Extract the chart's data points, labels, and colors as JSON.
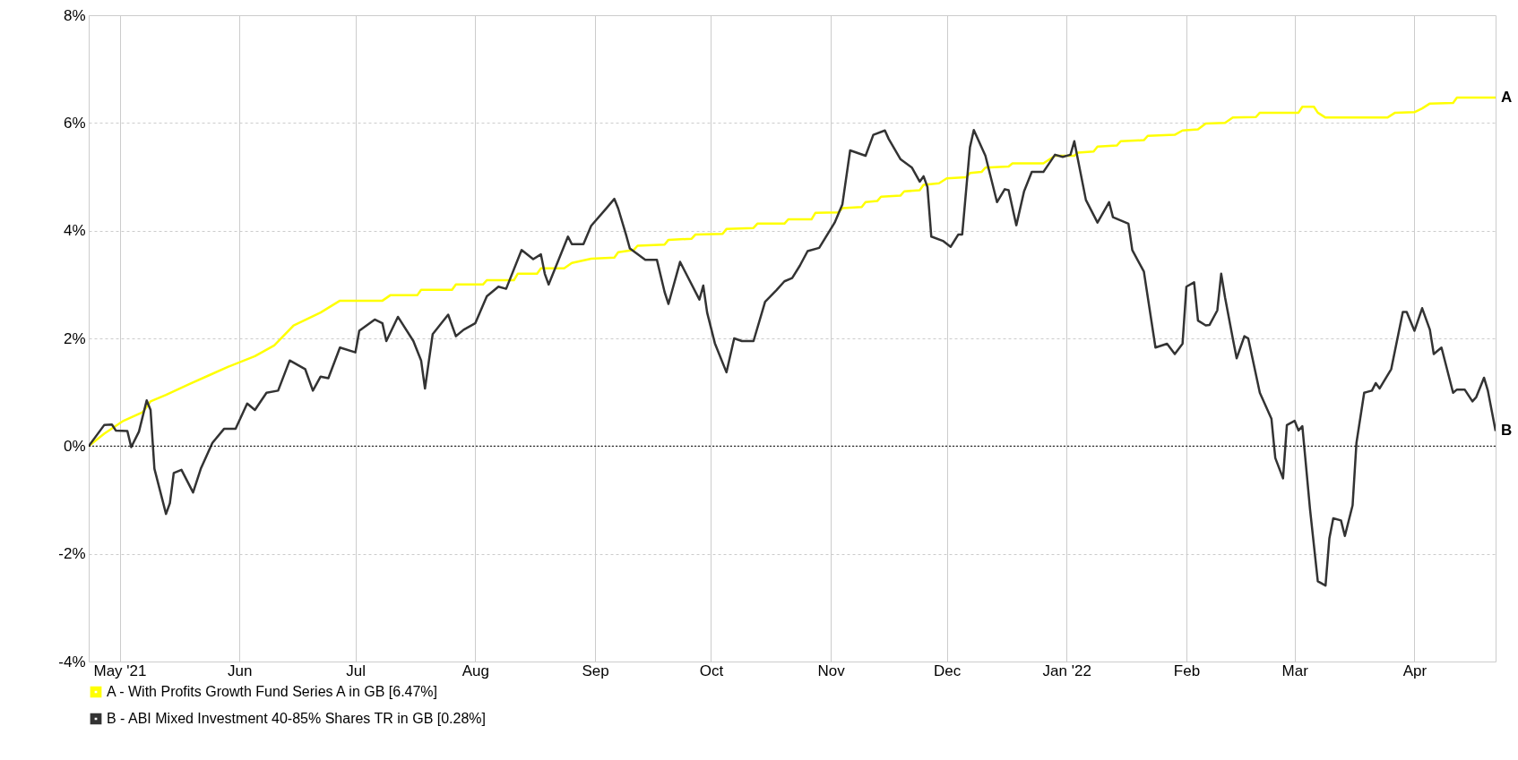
{
  "chart_data": {
    "type": "line",
    "xlim": [
      "2021-04-23",
      "2022-04-22"
    ],
    "xticks": [
      {
        "value": "2021-05-01",
        "label": "May '21"
      },
      {
        "value": "2021-06-01",
        "label": "Jun"
      },
      {
        "value": "2021-07-01",
        "label": "Jul"
      },
      {
        "value": "2021-08-01",
        "label": "Aug"
      },
      {
        "value": "2021-09-01",
        "label": "Sep"
      },
      {
        "value": "2021-10-01",
        "label": "Oct"
      },
      {
        "value": "2021-11-01",
        "label": "Nov"
      },
      {
        "value": "2021-12-01",
        "label": "Dec"
      },
      {
        "value": "2022-01-01",
        "label": "Jan '22"
      },
      {
        "value": "2022-02-01",
        "label": "Feb"
      },
      {
        "value": "2022-03-01",
        "label": "Mar"
      },
      {
        "value": "2022-04-01",
        "label": "Apr"
      }
    ],
    "ylim": [
      -4,
      8
    ],
    "yticks": [
      {
        "value": -4,
        "label": "-4%"
      },
      {
        "value": -2,
        "label": "-2%"
      },
      {
        "value": 0,
        "label": "0%"
      },
      {
        "value": 2,
        "label": "2%"
      },
      {
        "value": 4,
        "label": "4%"
      },
      {
        "value": 6,
        "label": "6%"
      },
      {
        "value": 8,
        "label": "8%"
      }
    ],
    "grid": true,
    "legend": "bottom",
    "line_style": "solid",
    "ref_lines": [
      {
        "axis": "y",
        "value": 0,
        "color": "#000000",
        "line_style": "dotted"
      }
    ],
    "annotations": [
      {
        "text": "A",
        "x": "2022-04-22",
        "y": 6.47
      },
      {
        "text": "B",
        "x": "2022-04-22",
        "y": 0.28
      }
    ],
    "series": [
      {
        "name": "A - With Profits Growth Fund Series A in GB [6.47%]",
        "color": "#ffff00",
        "x": [
          "2021-04-23",
          "2021-04-27",
          "2021-05-02",
          "2021-05-07",
          "2021-05-09",
          "2021-05-13",
          "2021-05-19",
          "2021-05-24",
          "2021-05-29",
          "2021-06-05",
          "2021-06-10",
          "2021-06-15",
          "2021-06-22",
          "2021-06-27",
          "2021-07-08",
          "2021-07-10",
          "2021-07-17",
          "2021-07-18",
          "2021-07-26",
          "2021-07-27",
          "2021-08-03",
          "2021-08-04",
          "2021-08-11",
          "2021-08-12",
          "2021-08-17",
          "2021-08-18",
          "2021-08-24",
          "2021-08-26",
          "2021-08-31",
          "2021-09-06",
          "2021-09-07",
          "2021-09-11",
          "2021-09-12",
          "2021-09-19",
          "2021-09-20",
          "2021-09-26",
          "2021-09-27",
          "2021-10-04",
          "2021-10-05",
          "2021-10-12",
          "2021-10-13",
          "2021-10-20",
          "2021-10-21",
          "2021-10-27",
          "2021-10-28",
          "2021-11-03",
          "2021-11-04",
          "2021-11-09",
          "2021-11-10",
          "2021-11-13",
          "2021-11-14",
          "2021-11-19",
          "2021-11-20",
          "2021-11-24",
          "2021-11-25",
          "2021-11-29",
          "2021-12-01",
          "2021-12-06",
          "2021-12-07",
          "2021-12-10",
          "2021-12-11",
          "2021-12-17",
          "2021-12-18",
          "2021-12-26",
          "2021-12-29",
          "2022-01-03",
          "2022-01-04",
          "2022-01-08",
          "2022-01-09",
          "2022-01-14",
          "2022-01-15",
          "2022-01-21",
          "2022-01-22",
          "2022-01-29",
          "2022-01-31",
          "2022-02-04",
          "2022-02-06",
          "2022-02-11",
          "2022-02-13",
          "2022-02-19",
          "2022-02-20",
          "2022-03-02",
          "2022-03-03",
          "2022-03-06",
          "2022-03-07",
          "2022-03-09",
          "2022-03-25",
          "2022-03-27",
          "2022-04-01",
          "2022-04-03",
          "2022-04-05",
          "2022-04-11",
          "2022-04-12",
          "2022-04-22"
        ],
        "values": [
          0,
          0.23,
          0.47,
          0.63,
          0.83,
          0.95,
          1.15,
          1.31,
          1.47,
          1.67,
          1.87,
          2.24,
          2.48,
          2.7,
          2.7,
          2.8,
          2.8,
          2.9,
          2.9,
          3.0,
          3.0,
          3.08,
          3.08,
          3.2,
          3.2,
          3.3,
          3.3,
          3.4,
          3.48,
          3.5,
          3.6,
          3.64,
          3.72,
          3.74,
          3.83,
          3.85,
          3.93,
          3.94,
          4.03,
          4.05,
          4.13,
          4.13,
          4.21,
          4.21,
          4.33,
          4.34,
          4.42,
          4.44,
          4.53,
          4.55,
          4.63,
          4.65,
          4.73,
          4.75,
          4.85,
          4.88,
          4.97,
          4.99,
          5.07,
          5.09,
          5.17,
          5.19,
          5.25,
          5.25,
          5.39,
          5.39,
          5.45,
          5.47,
          5.56,
          5.58,
          5.66,
          5.68,
          5.76,
          5.78,
          5.86,
          5.88,
          5.99,
          6.0,
          6.1,
          6.11,
          6.19,
          6.19,
          6.3,
          6.3,
          6.19,
          6.1,
          6.1,
          6.19,
          6.2,
          6.27,
          6.36,
          6.37,
          6.47,
          6.47
        ]
      },
      {
        "name": "B - ABI Mixed Investment 40-85% Shares TR in GB [0.28%]",
        "color": "#333333",
        "x": [
          "2021-04-23",
          "2021-04-27",
          "2021-04-29",
          "2021-04-30",
          "2021-05-03",
          "2021-05-04",
          "2021-05-06",
          "2021-05-08",
          "2021-05-09",
          "2021-05-10",
          "2021-05-13",
          "2021-05-14",
          "2021-05-15",
          "2021-05-17",
          "2021-05-20",
          "2021-05-22",
          "2021-05-25",
          "2021-05-28",
          "2021-05-31",
          "2021-06-03",
          "2021-06-05",
          "2021-06-08",
          "2021-06-11",
          "2021-06-14",
          "2021-06-18",
          "2021-06-20",
          "2021-06-22",
          "2021-06-24",
          "2021-06-27",
          "2021-07-01",
          "2021-07-02",
          "2021-07-06",
          "2021-07-08",
          "2021-07-09",
          "2021-07-12",
          "2021-07-16",
          "2021-07-18",
          "2021-07-19",
          "2021-07-21",
          "2021-07-25",
          "2021-07-27",
          "2021-07-29",
          "2021-08-01",
          "2021-08-04",
          "2021-08-07",
          "2021-08-09",
          "2021-08-13",
          "2021-08-16",
          "2021-08-18",
          "2021-08-19",
          "2021-08-20",
          "2021-08-25",
          "2021-08-26",
          "2021-08-29",
          "2021-08-31",
          "2021-09-04",
          "2021-09-06",
          "2021-09-07",
          "2021-09-09",
          "2021-09-10",
          "2021-09-14",
          "2021-09-17",
          "2021-09-19",
          "2021-09-20",
          "2021-09-23",
          "2021-09-24",
          "2021-09-28",
          "2021-09-29",
          "2021-09-30",
          "2021-10-02",
          "2021-10-05",
          "2021-10-07",
          "2021-10-09",
          "2021-10-12",
          "2021-10-15",
          "2021-10-18",
          "2021-10-20",
          "2021-10-22",
          "2021-10-24",
          "2021-10-26",
          "2021-10-29",
          "2021-11-02",
          "2021-11-04",
          "2021-11-06",
          "2021-11-08",
          "2021-11-10",
          "2021-11-12",
          "2021-11-15",
          "2021-11-16",
          "2021-11-19",
          "2021-11-22",
          "2021-11-24",
          "2021-11-25",
          "2021-11-26",
          "2021-11-27",
          "2021-11-30",
          "2021-12-02",
          "2021-12-04",
          "2021-12-05",
          "2021-12-07",
          "2021-12-08",
          "2021-12-11",
          "2021-12-14",
          "2021-12-16",
          "2021-12-17",
          "2021-12-19",
          "2021-12-21",
          "2021-12-23",
          "2021-12-26",
          "2021-12-29",
          "2021-12-31",
          "2022-01-02",
          "2022-01-03",
          "2022-01-06",
          "2022-01-09",
          "2022-01-12",
          "2022-01-13",
          "2022-01-17",
          "2022-01-18",
          "2022-01-21",
          "2022-01-24",
          "2022-01-27",
          "2022-01-29",
          "2022-01-31",
          "2022-02-01",
          "2022-02-03",
          "2022-02-04",
          "2022-02-06",
          "2022-02-07",
          "2022-02-09",
          "2022-02-10",
          "2022-02-11",
          "2022-02-13",
          "2022-02-14",
          "2022-02-16",
          "2022-02-17",
          "2022-02-20",
          "2022-02-23",
          "2022-02-24",
          "2022-02-26",
          "2022-02-27",
          "2022-03-01",
          "2022-03-02",
          "2022-03-03",
          "2022-03-05",
          "2022-03-07",
          "2022-03-09",
          "2022-03-10",
          "2022-03-11",
          "2022-03-13",
          "2022-03-14",
          "2022-03-16",
          "2022-03-17",
          "2022-03-19",
          "2022-03-21",
          "2022-03-22",
          "2022-03-23",
          "2022-03-26",
          "2022-03-29",
          "2022-03-30",
          "2022-04-01",
          "2022-04-03",
          "2022-04-05",
          "2022-04-06",
          "2022-04-08",
          "2022-04-11",
          "2022-04-12",
          "2022-04-14",
          "2022-04-16",
          "2022-04-17",
          "2022-04-19",
          "2022-04-20",
          "2022-04-22"
        ],
        "values": [
          0,
          0.39,
          0.4,
          0.29,
          0.28,
          -0.02,
          0.27,
          0.85,
          0.67,
          -0.42,
          -1.26,
          -1.06,
          -0.5,
          -0.44,
          -0.86,
          -0.42,
          0.06,
          0.32,
          0.32,
          0.79,
          0.67,
          0.99,
          1.03,
          1.59,
          1.43,
          1.03,
          1.29,
          1.26,
          1.83,
          1.74,
          2.14,
          2.35,
          2.28,
          1.95,
          2.4,
          1.95,
          1.59,
          1.07,
          2.08,
          2.44,
          2.04,
          2.16,
          2.28,
          2.78,
          2.96,
          2.92,
          3.64,
          3.47,
          3.56,
          3.2,
          3.0,
          3.89,
          3.75,
          3.75,
          4.09,
          4.42,
          4.59,
          4.41,
          3.93,
          3.67,
          3.46,
          3.46,
          2.86,
          2.64,
          3.42,
          3.28,
          2.72,
          2.98,
          2.48,
          1.91,
          1.37,
          2.0,
          1.95,
          1.95,
          2.68,
          2.9,
          3.06,
          3.12,
          3.35,
          3.62,
          3.68,
          4.15,
          4.49,
          5.49,
          5.44,
          5.39,
          5.78,
          5.86,
          5.7,
          5.33,
          5.17,
          4.91,
          5.01,
          4.81,
          3.89,
          3.81,
          3.7,
          3.93,
          3.93,
          5.55,
          5.87,
          5.39,
          4.53,
          4.77,
          4.75,
          4.1,
          4.73,
          5.09,
          5.09,
          5.41,
          5.37,
          5.41,
          5.66,
          4.57,
          4.15,
          4.53,
          4.25,
          4.13,
          3.64,
          3.24,
          1.83,
          1.9,
          1.71,
          1.9,
          2.96,
          3.04,
          2.33,
          2.24,
          2.25,
          2.52,
          3.2,
          2.76,
          2.0,
          1.63,
          2.04,
          2.0,
          0.99,
          0.51,
          -0.22,
          -0.6,
          0.39,
          0.47,
          0.29,
          0.37,
          -1.18,
          -2.51,
          -2.59,
          -1.71,
          -1.34,
          -1.38,
          -1.67,
          -1.1,
          0.06,
          0.99,
          1.03,
          1.17,
          1.07,
          1.43,
          2.49,
          2.49,
          2.14,
          2.56,
          2.16,
          1.71,
          1.83,
          0.99,
          1.05,
          1.05,
          0.83,
          0.91,
          1.27,
          1.03,
          0.28
        ]
      }
    ]
  }
}
